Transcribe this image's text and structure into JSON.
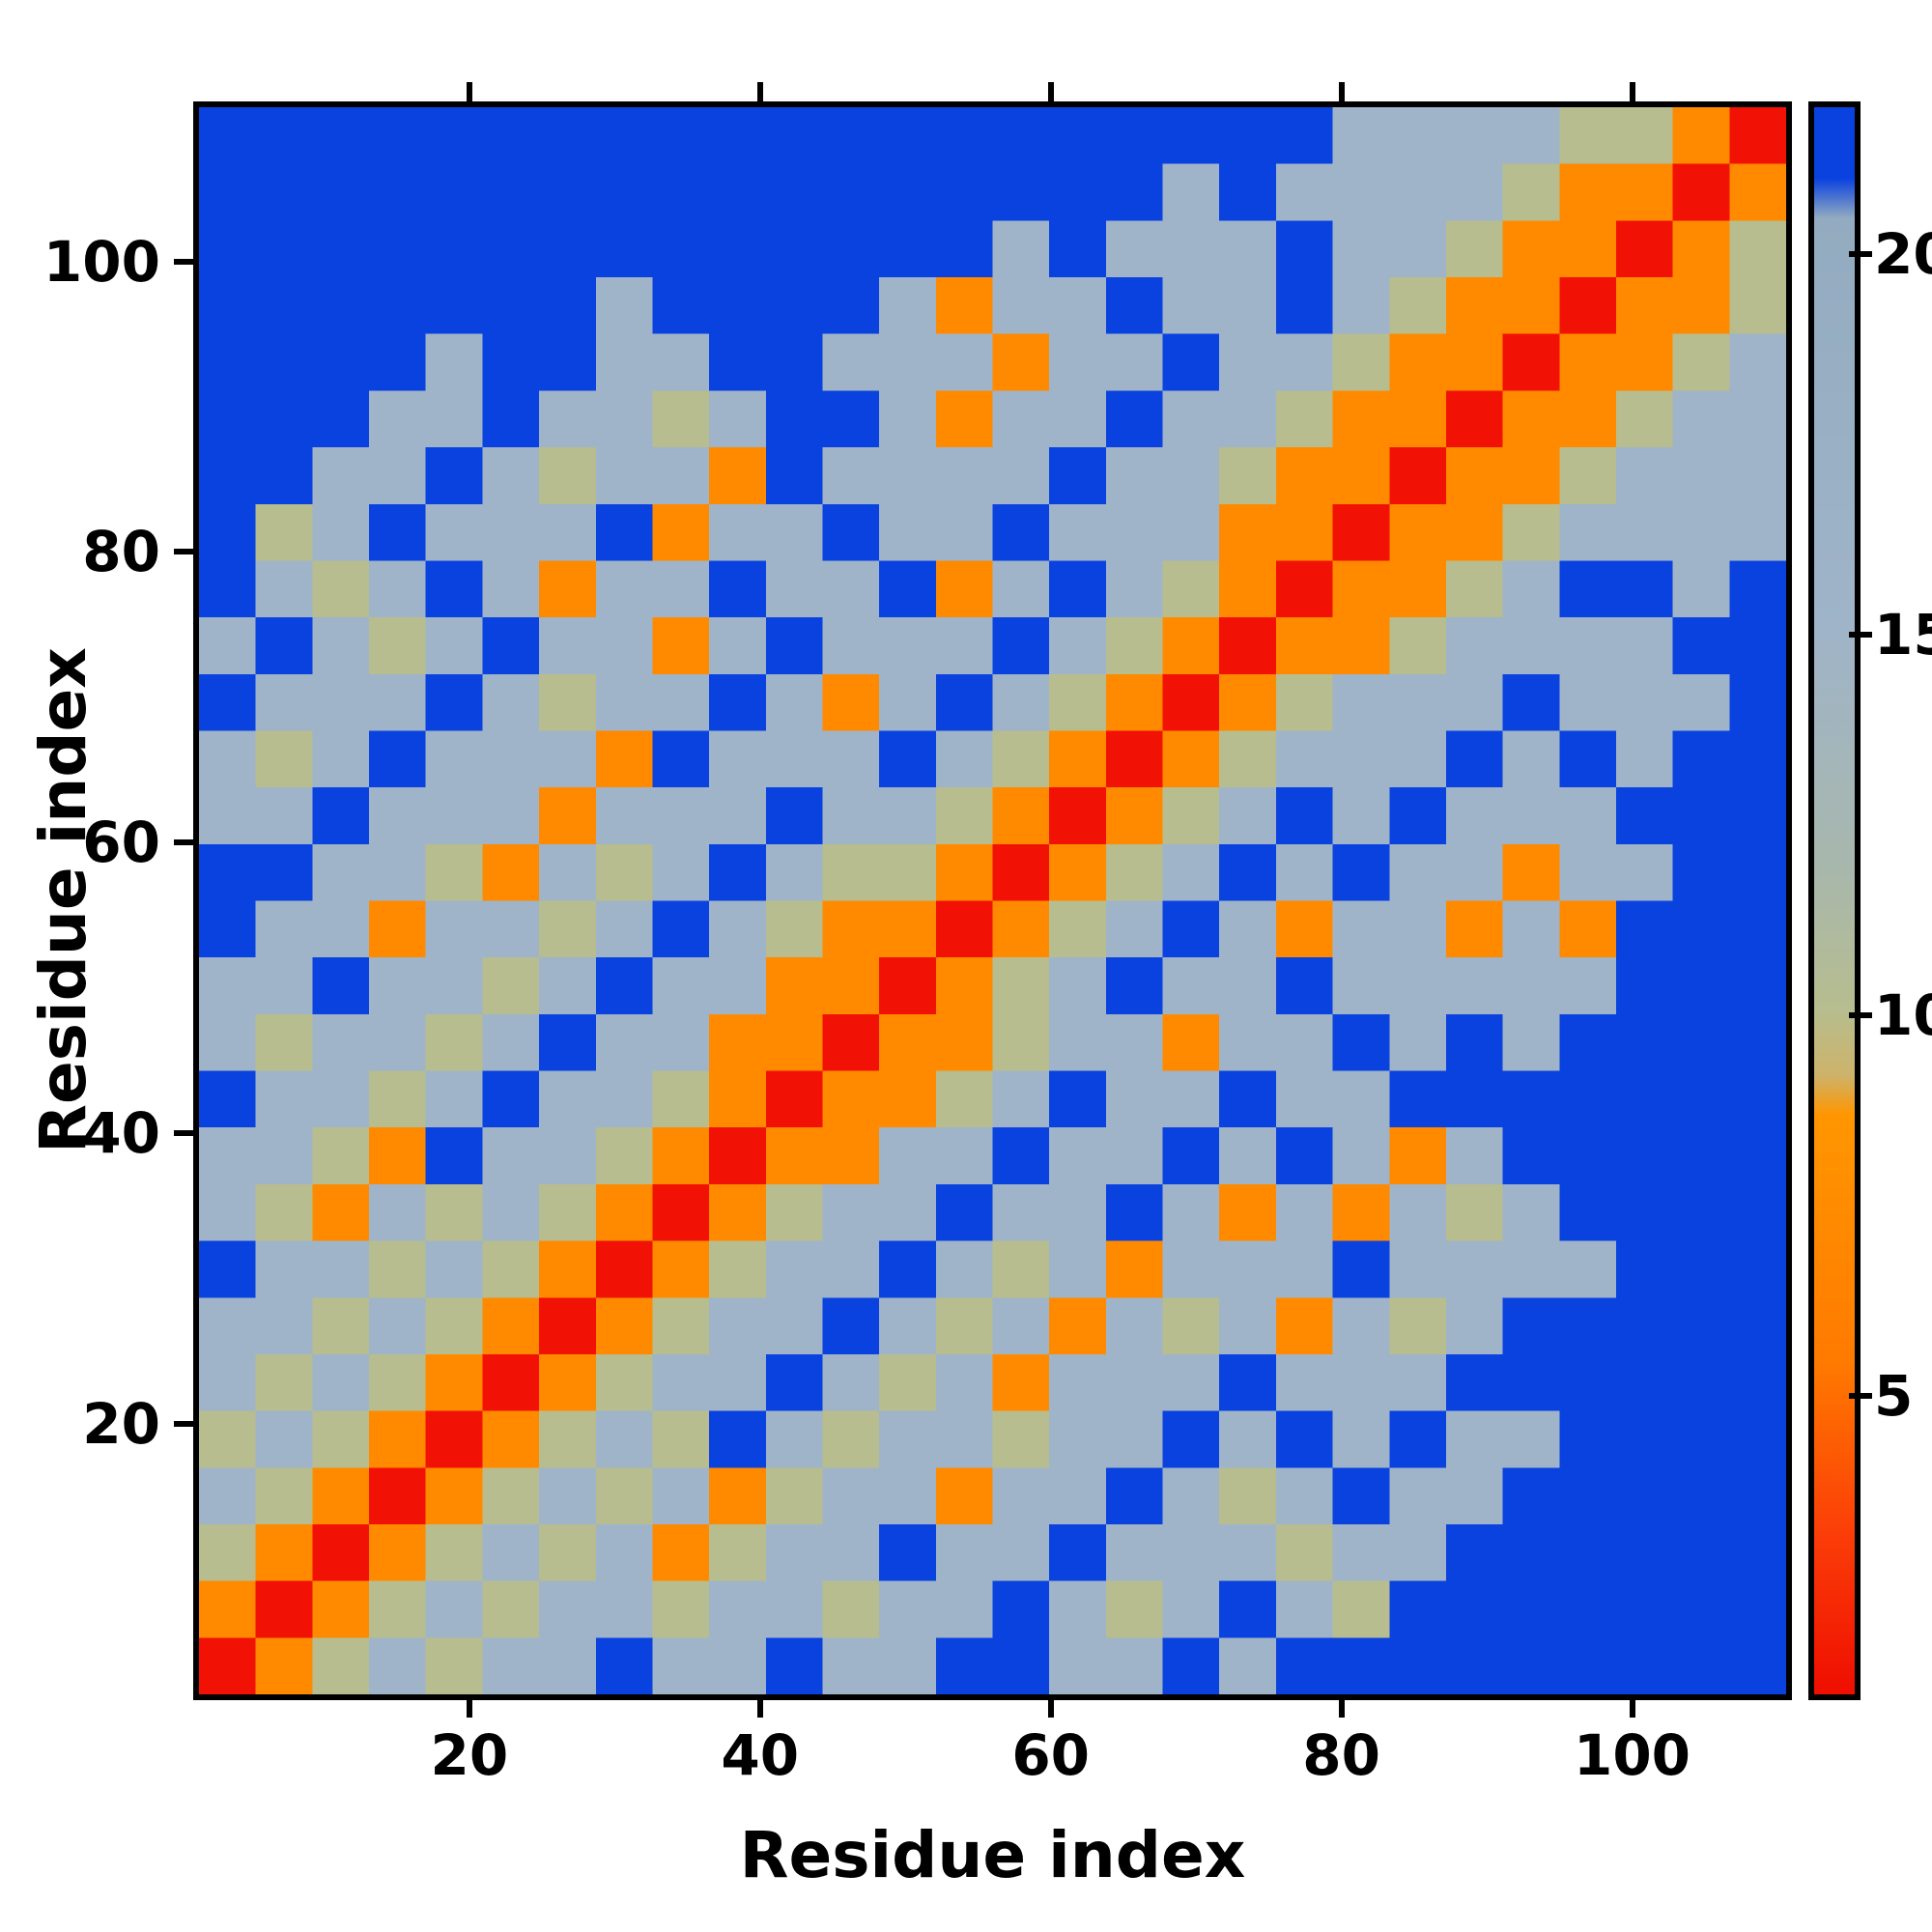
{
  "figure": {
    "xlabel": "Residue index",
    "ylabel": "Residue index"
  },
  "chart_data": {
    "type": "heatmap",
    "title": "",
    "xlabel": "Residue index",
    "ylabel": "Residue index",
    "x_range": [
      1,
      111
    ],
    "y_range": [
      1,
      111
    ],
    "x_ticks": [
      20,
      40,
      60,
      80,
      100
    ],
    "y_ticks": [
      20,
      40,
      60,
      80,
      100
    ],
    "description": "Symmetric residue-residue distance map: red diagonal (shortest distances), orange near-diagonal band, tan/gray mid-range contact clusters, light blue-gray weak contacts, deep blue background = large distance (capped at colorbar max).",
    "grid_size": 28,
    "residues_per_cell": 4,
    "matrix_encoding": {
      "note": "rows_lower_triangle[i] lists cells j=0..i for bottom-based row i (row 0 = lowest residues). Matrix is symmetric: value(i,j)=value(j,i). Letters map to approximate distance values and plotted colors below.",
      "value_key": {
        "R": 1.5,
        "O": 6,
        "G": 11,
        "L": 16,
        "B": 22
      },
      "colors": {
        "R": "#f11205",
        "O": "#ff8a00",
        "G": "#b7bd8e",
        "L": "#9fb4c8",
        "B": "#0a42df"
      }
    },
    "rows_lower_triangle": [
      "R",
      "OR",
      "GOR",
      "LGOR",
      "GLGOR",
      "LGLGOR",
      "LLGLGOR",
      "BLLGLGOR",
      "LGOLGLGOR",
      "LLGOBLLGOR",
      "BLLGLBLLGOR",
      "LGLLGLBLLOOR",
      "LLBLLGLBLLOOR",
      "BLLOLLGLBLGOOR",
      "BBLLGOLGLBLGGOR",
      "LLBLLLOLLLBLLGOR",
      "LGLBLLLOBLLLBLGOR",
      "BLLLBLGLLBLOLBLGOR",
      "LBLGLBLLOLBLLLBLGOR",
      "BLGLBLOLLBLLBOLBLGOR",
      "BGLBLLLBOLLBLLBLLLOOR",
      "BBLLBLGLLOBLLLLBLLGOOR",
      "BBBLLBLLGLBBLOLLBLLGOOR",
      "BBBBLBBLLBBLLLOLLBLLGOOR",
      "BBBBBBBLBBBBLOLLBLLBLGOOR",
      "BBBBBBBBBBBBBBLBLLLBLLGOOR",
      "BBBBBBBBBBBBBBBBBLBLLLLGOOR",
      "BBBBBBBBBBBBBBBBBBBBLLLLGGOR"
    ],
    "colorbar": {
      "min": 1,
      "max": 22,
      "ticks": [
        5,
        10,
        15,
        20
      ],
      "gradient_stops_top_to_bottom": [
        {
          "pos": 0,
          "color": "#0a42df"
        },
        {
          "pos": 4.5,
          "color": "#0a42df"
        },
        {
          "pos": 7,
          "color": "#93abc0"
        },
        {
          "pos": 33,
          "color": "#9fb4c8"
        },
        {
          "pos": 48,
          "color": "#a8b7ac"
        },
        {
          "pos": 57,
          "color": "#b7bd8e"
        },
        {
          "pos": 61,
          "color": "#cdb36a"
        },
        {
          "pos": 63.5,
          "color": "#ff9600"
        },
        {
          "pos": 79,
          "color": "#ff7a00"
        },
        {
          "pos": 90,
          "color": "#fb3d08"
        },
        {
          "pos": 100,
          "color": "#ef0e00"
        }
      ]
    }
  }
}
